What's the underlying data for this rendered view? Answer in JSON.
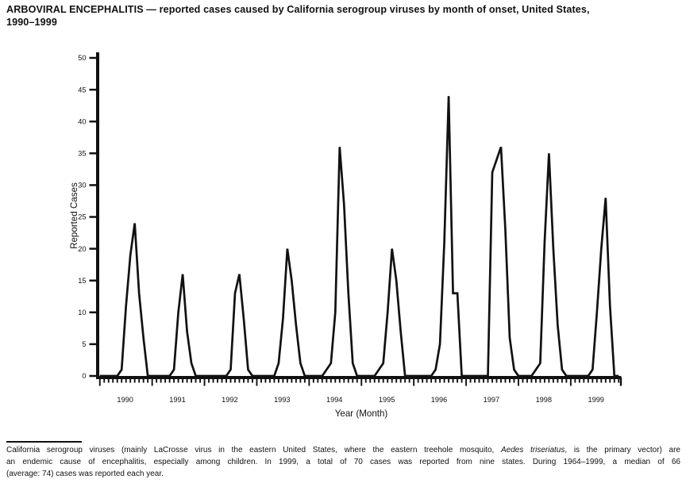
{
  "header": {
    "line1": "ARBOVIRAL ENCEPHALITIS — reported cases caused by California serogroup viruses by month of onset, United States,",
    "line2": "1990–1999"
  },
  "chart_data": {
    "type": "line",
    "title": "ARBOVIRAL ENCEPHALITIS — reported cases caused by California serogroup viruses by month of onset, United States, 1990–1999",
    "xlabel": "Year (Month)",
    "ylabel": "Reported Cases",
    "ylim": [
      0,
      50
    ],
    "yticks": [
      0,
      5,
      10,
      15,
      20,
      25,
      30,
      35,
      40,
      45,
      50
    ],
    "x_unit": "month",
    "months_per_year": 12,
    "grid": false,
    "legend": "none",
    "line_color": "#111111",
    "background": "#ffffff",
    "years": [
      "1990",
      "1991",
      "1992",
      "1993",
      "1994",
      "1995",
      "1996",
      "1997",
      "1998",
      "1999"
    ],
    "monthly_cases_by_year_jan_to_dec": {
      "1990": [
        0,
        0,
        0,
        0,
        0,
        1,
        11,
        19,
        24,
        13,
        6,
        0
      ],
      "1991": [
        0,
        0,
        0,
        0,
        0,
        1,
        10,
        16,
        7,
        2,
        0,
        0
      ],
      "1992": [
        0,
        0,
        0,
        0,
        0,
        0,
        1,
        13,
        16,
        9,
        1,
        0
      ],
      "1993": [
        0,
        0,
        0,
        0,
        0,
        2,
        9,
        20,
        15,
        8,
        2,
        0
      ],
      "1994": [
        0,
        0,
        0,
        0,
        1,
        2,
        10,
        36,
        27,
        13,
        2,
        0
      ],
      "1995": [
        0,
        0,
        0,
        0,
        1,
        2,
        10,
        20,
        15,
        7,
        0,
        0
      ],
      "1996": [
        0,
        0,
        0,
        0,
        0,
        1,
        5,
        21,
        44,
        13,
        13,
        0
      ],
      "1997": [
        0,
        0,
        0,
        0,
        0,
        0,
        32,
        34,
        36,
        23,
        6,
        1
      ],
      "1998": [
        0,
        0,
        0,
        0,
        1,
        2,
        21,
        35,
        20,
        8,
        1,
        0
      ],
      "1999": [
        0,
        0,
        0,
        0,
        0,
        1,
        10,
        20,
        28,
        11,
        0,
        0
      ]
    },
    "annual_peak_cases": {
      "1990": 24,
      "1991": 16,
      "1992": 16,
      "1993": 20,
      "1994": 36,
      "1995": 20,
      "1996": 44,
      "1997": 36,
      "1998": 35,
      "1999": 28
    }
  },
  "footnote": {
    "line1_before_italic": "California serogroup viruses (mainly LaCrosse virus in the eastern United States, where the eastern treehole mosquito, ",
    "line1_italic": "Aedes triseriatus",
    "line1_after_italic": ", is the primary vector) are",
    "line2": "an endemic cause of encephalitis, especially among children. In 1999, a total of 70 cases was reported from nine states. During 1964–1999, a median of 66",
    "line3": "(average: 74) cases was reported each year."
  }
}
